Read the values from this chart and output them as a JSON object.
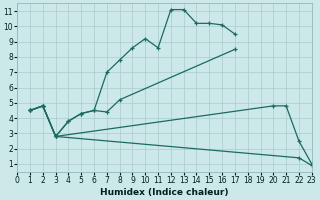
{
  "xlabel": "Humidex (Indice chaleur)",
  "bg_color": "#cce8e8",
  "line_color": "#1a6b60",
  "xlim": [
    0,
    23
  ],
  "ylim": [
    0.5,
    11.5
  ],
  "xticks": [
    0,
    1,
    2,
    3,
    4,
    5,
    6,
    7,
    8,
    9,
    10,
    11,
    12,
    13,
    14,
    15,
    16,
    17,
    18,
    19,
    20,
    21,
    22,
    23
  ],
  "yticks": [
    1,
    2,
    3,
    4,
    5,
    6,
    7,
    8,
    9,
    10,
    11
  ],
  "line1_x": [
    1,
    2,
    3,
    4,
    5,
    6,
    7,
    8,
    9,
    10,
    11,
    12,
    13,
    14,
    15,
    16,
    17
  ],
  "line1_y": [
    4.5,
    4.8,
    2.8,
    3.8,
    4.3,
    4.5,
    7.0,
    7.8,
    8.6,
    9.2,
    8.6,
    11.1,
    11.1,
    10.2,
    10.2,
    10.1,
    9.5
  ],
  "line2_x": [
    1,
    2,
    3,
    4,
    5,
    6,
    7,
    8,
    17
  ],
  "line2_y": [
    4.5,
    4.8,
    2.8,
    3.8,
    4.3,
    4.5,
    4.4,
    5.2,
    8.5
  ],
  "line3_x": [
    1,
    2,
    3,
    20,
    21,
    22,
    23
  ],
  "line3_y": [
    4.5,
    4.8,
    2.8,
    4.8,
    4.8,
    2.5,
    1.0
  ],
  "line4_x": [
    1,
    2,
    3,
    22,
    23
  ],
  "line4_y": [
    4.5,
    4.8,
    2.8,
    1.4,
    0.9
  ]
}
